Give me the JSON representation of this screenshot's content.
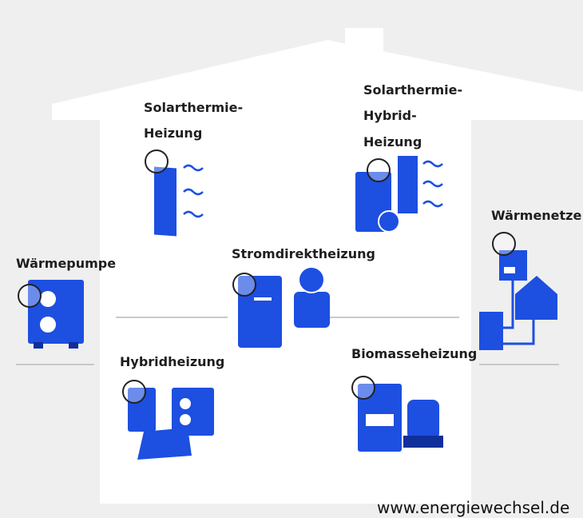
{
  "nodes": [
    {
      "label": [
        "Solarthermie-",
        "Heizung"
      ]
    },
    {
      "label": [
        "Solarthermie-",
        "Hybrid-",
        "Heizung"
      ]
    },
    {
      "label": [
        "Wärmenetze"
      ]
    },
    {
      "label": [
        "Wärmepumpe"
      ]
    },
    {
      "label": [
        "Stromdirektheizung"
      ]
    },
    {
      "label": [
        "Hybridheizung"
      ]
    },
    {
      "label": [
        "Biomasseheizung"
      ]
    }
  ],
  "footer": "www.energiewechsel.de"
}
